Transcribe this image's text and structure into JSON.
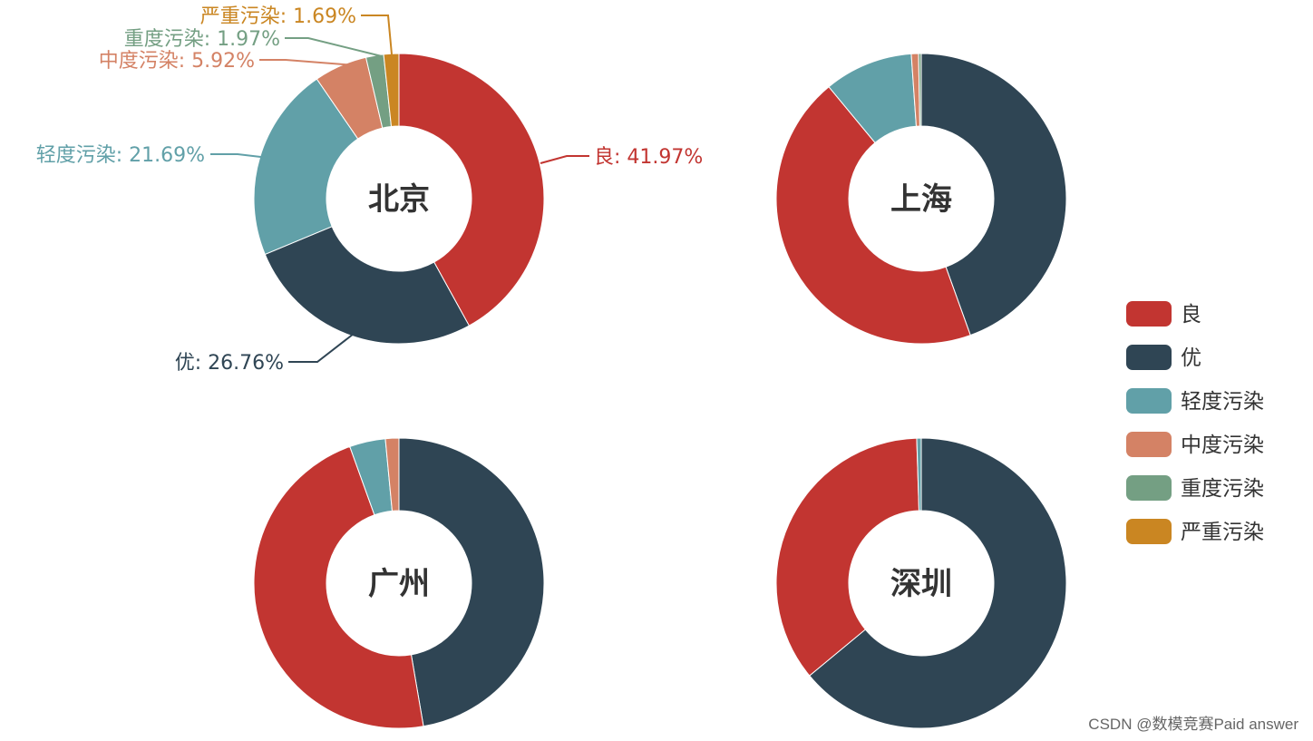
{
  "colors": {
    "良": "#c23531",
    "优": "#2f4554",
    "轻度污染": "#61a0a8",
    "中度污染": "#d48265",
    "重度污染": "#749f83",
    "严重污染": "#ca8622"
  },
  "legend": {
    "position": "right",
    "items": [
      "良",
      "优",
      "轻度污染",
      "中度污染",
      "重度污染",
      "严重污染"
    ]
  },
  "chart_data": [
    {
      "type": "pie",
      "variant": "donut",
      "title": "北京",
      "labels_shown": true,
      "slices": [
        {
          "name": "良",
          "value": 41.97,
          "label": "良: 41.97%"
        },
        {
          "name": "优",
          "value": 26.76,
          "label": "优: 26.76%"
        },
        {
          "name": "轻度污染",
          "value": 21.69,
          "label": "轻度污染: 21.69%"
        },
        {
          "name": "中度污染",
          "value": 5.92,
          "label": "中度污染: 5.92%"
        },
        {
          "name": "重度污染",
          "value": 1.97,
          "label": "重度污染: 1.97%"
        },
        {
          "name": "严重污染",
          "value": 1.69,
          "label": "严重污染: 1.69%"
        }
      ]
    },
    {
      "type": "pie",
      "variant": "donut",
      "title": "上海",
      "labels_shown": false,
      "slices": [
        {
          "name": "优",
          "value": 44.5
        },
        {
          "name": "良",
          "value": 44.5
        },
        {
          "name": "轻度污染",
          "value": 9.9
        },
        {
          "name": "中度污染",
          "value": 0.8
        },
        {
          "name": "重度污染",
          "value": 0.3
        }
      ]
    },
    {
      "type": "pie",
      "variant": "donut",
      "title": "广州",
      "labels_shown": false,
      "slices": [
        {
          "name": "优",
          "value": 47.3
        },
        {
          "name": "良",
          "value": 47.2
        },
        {
          "name": "轻度污染",
          "value": 4.0
        },
        {
          "name": "中度污染",
          "value": 1.5
        }
      ]
    },
    {
      "type": "pie",
      "variant": "donut",
      "title": "深圳",
      "labels_shown": false,
      "slices": [
        {
          "name": "优",
          "value": 64.0
        },
        {
          "name": "良",
          "value": 35.5
        },
        {
          "name": "轻度污染",
          "value": 0.5
        }
      ]
    }
  ],
  "watermark": "CSDN @数模竞赛Paid answer"
}
